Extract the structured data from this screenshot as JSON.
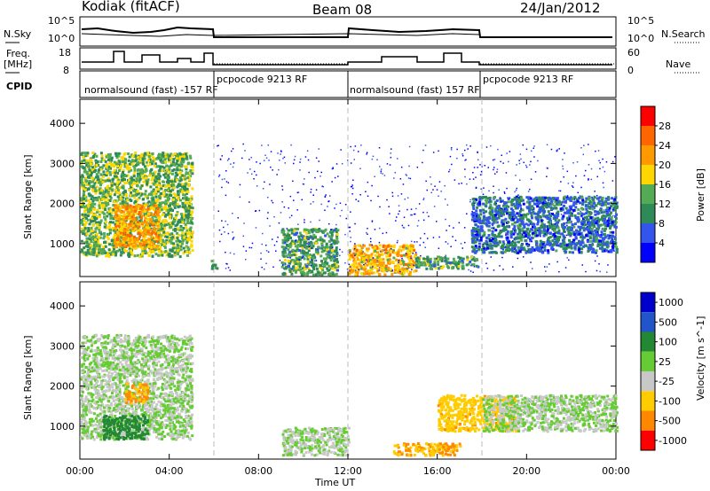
{
  "header": {
    "station": "Kodiak (fitACF)",
    "beam": "Beam 08",
    "date": "24/Jan/2012"
  },
  "panel_labels": {
    "nsky": "N.Sky",
    "freq_line1": "Freq.",
    "freq_line2": "[MHz]",
    "cpid": "CPID",
    "nsearch": "N.Search",
    "nave": "Nave",
    "nsky_ticks": [
      "10^5",
      "10^0"
    ],
    "nsearch_ticks": [
      "10^5",
      "10^0"
    ],
    "freq_ticks": [
      "18",
      "8"
    ],
    "nave_ticks": [
      "60",
      "0"
    ]
  },
  "cpid_segments": [
    {
      "label": "normalsound (fast) -157 RF",
      "start": 0,
      "end": 6
    },
    {
      "label": "pcpocode 9213 RF",
      "start": 6,
      "end": 12
    },
    {
      "label": "normalsound (fast) 157 RF",
      "start": 12,
      "end": 18
    },
    {
      "label": "pcpocode 9213 RF",
      "start": 18,
      "end": 24
    }
  ],
  "colors": {
    "power": [
      "#0000ff",
      "#3355ee",
      "#2e8b57",
      "#55aa55",
      "#ffd700",
      "#ff9900",
      "#ff6600",
      "#ff0000"
    ],
    "velocity": [
      "#0000cc",
      "#2255cc",
      "#228833",
      "#66cc33",
      "#c8c8c8",
      "#ffcc00",
      "#ff8800",
      "#ff0000"
    ],
    "grid": "#bbbbbb"
  },
  "chart_data": [
    {
      "type": "heatmap",
      "title": "",
      "xlabel": "Time UT",
      "ylabel": "Slant Range [km]",
      "colorbar_label": "Power [dB]",
      "colorbar_ticks": [
        "28",
        "24",
        "20",
        "16",
        "12",
        "8",
        "4"
      ],
      "xlim": [
        0,
        24
      ],
      "ylim": [
        180,
        4600
      ],
      "x_ticks": [
        0,
        4,
        8,
        12,
        16,
        20,
        24
      ],
      "x_tick_labels": [
        "00:00",
        "04:00",
        "08:00",
        "12:00",
        "16:00",
        "20:00",
        "00:00"
      ],
      "y_ticks": [
        1000,
        2000,
        3000,
        4000
      ],
      "y_tick_labels": [
        "1000",
        "2000",
        "3000",
        "4000"
      ],
      "colorbar_range": [
        0,
        32
      ],
      "echo_regions": [
        {
          "t": [
            0.0,
            5.0
          ],
          "r": [
            700,
            3300
          ],
          "v": 14
        },
        {
          "t": [
            1.5,
            3.5
          ],
          "r": [
            900,
            2000
          ],
          "v": 22
        },
        {
          "t": [
            5.8,
            6.1
          ],
          "r": [
            400,
            600
          ],
          "v": 10
        },
        {
          "t": [
            9.0,
            11.5
          ],
          "r": [
            250,
            1400
          ],
          "v": 12
        },
        {
          "t": [
            12.0,
            15.0
          ],
          "r": [
            250,
            1000
          ],
          "v": 20
        },
        {
          "t": [
            15.0,
            17.8
          ],
          "r": [
            400,
            700
          ],
          "v": 12
        },
        {
          "t": [
            17.5,
            24.0
          ],
          "r": [
            800,
            2200
          ],
          "v": 8
        },
        {
          "t": [
            6.0,
            24.0
          ],
          "r": [
            300,
            3500
          ],
          "v": 3
        }
      ]
    },
    {
      "type": "heatmap",
      "title": "",
      "xlabel": "Time UT",
      "ylabel": "Slant Range [km]",
      "colorbar_label": "Velocity [m s^-1]",
      "colorbar_ticks": [
        "1000",
        "500",
        "100",
        "25",
        "-25",
        "-100",
        "-500",
        "-1000"
      ],
      "xlim": [
        0,
        24
      ],
      "ylim": [
        180,
        4600
      ],
      "x_ticks": [
        0,
        4,
        8,
        12,
        16,
        20,
        24
      ],
      "x_tick_labels": [
        "00:00",
        "04:00",
        "08:00",
        "12:00",
        "16:00",
        "20:00",
        "00:00"
      ],
      "y_ticks": [
        1000,
        2000,
        3000,
        4000
      ],
      "y_tick_labels": [
        "1000",
        "2000",
        "3000",
        "4000"
      ],
      "echo_regions": [
        {
          "t": [
            0.0,
            5.0
          ],
          "r": [
            700,
            3300
          ],
          "v": 0
        },
        {
          "t": [
            2.0,
            3.0
          ],
          "r": [
            1600,
            2100
          ],
          "v": -300
        },
        {
          "t": [
            1.0,
            3.0
          ],
          "r": [
            700,
            1300
          ],
          "v": 150
        },
        {
          "t": [
            9.0,
            12.0
          ],
          "r": [
            300,
            1000
          ],
          "v": 0
        },
        {
          "t": [
            14.0,
            17.0
          ],
          "r": [
            300,
            600
          ],
          "v": -300
        },
        {
          "t": [
            16.0,
            19.5
          ],
          "r": [
            900,
            1800
          ],
          "v": -250
        },
        {
          "t": [
            18.0,
            24.0
          ],
          "r": [
            900,
            1800
          ],
          "v": 0
        }
      ]
    }
  ]
}
